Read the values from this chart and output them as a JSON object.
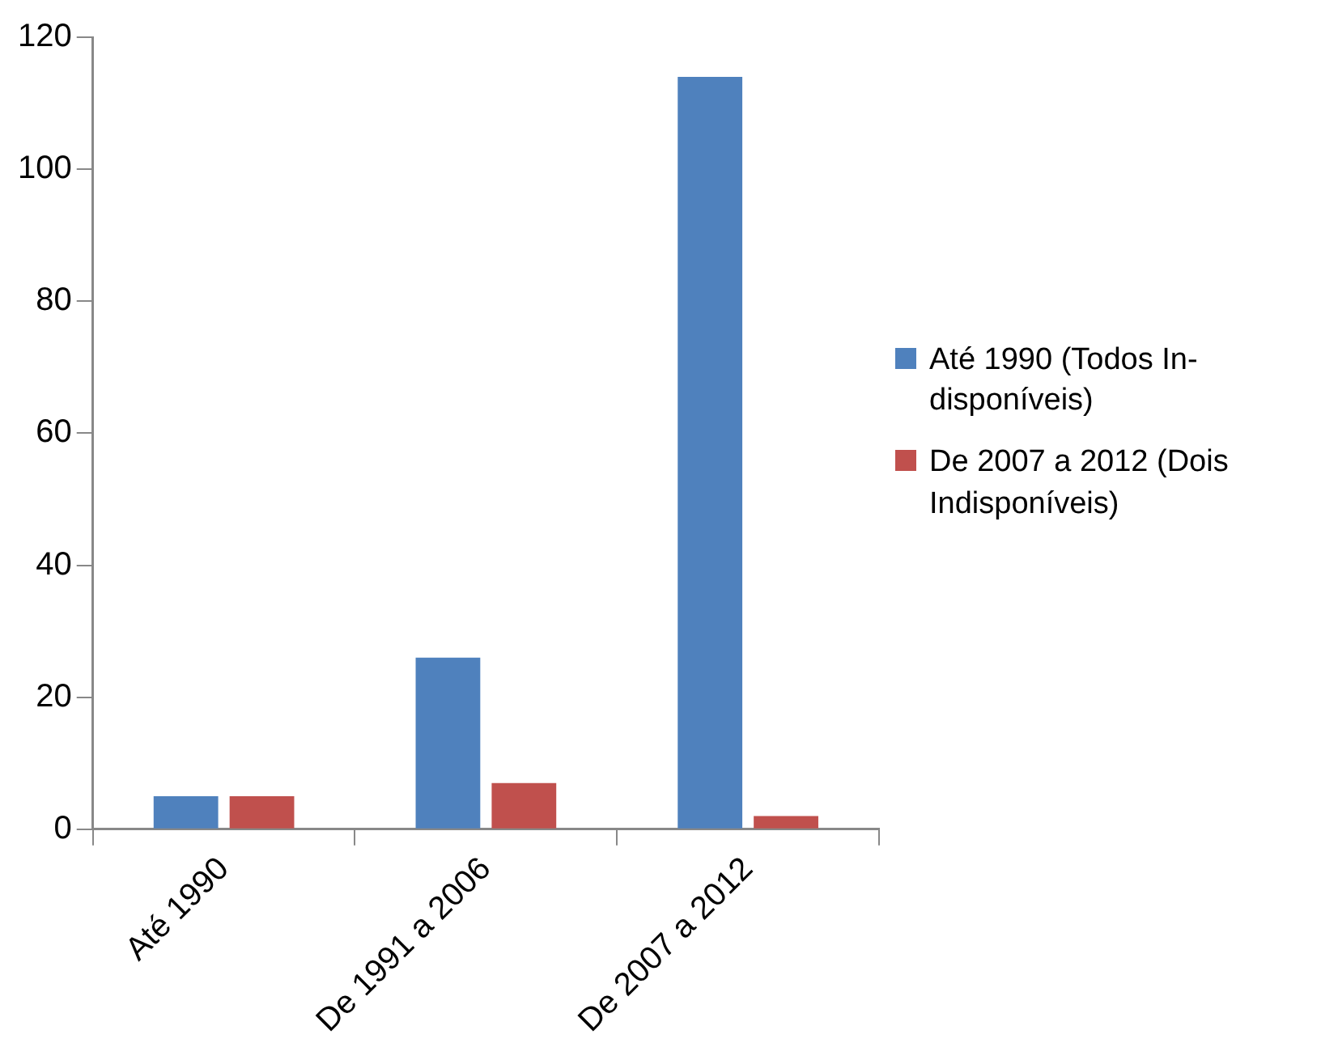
{
  "chart_data": {
    "type": "bar",
    "categories": [
      "Até 1990",
      "De 1991 a 2006",
      "De 2007 a 2012"
    ],
    "series": [
      {
        "name": "Até 1990 (Todos In-disponíveis)",
        "color": "#4f81bd",
        "values": [
          5,
          26,
          114
        ]
      },
      {
        "name": "De 2007 a 2012 (Dois Indisponíveis)",
        "color": "#c0504d",
        "values": [
          5,
          7,
          2
        ]
      }
    ],
    "ylim": [
      0,
      120
    ],
    "yticks": [
      0,
      20,
      40,
      60,
      80,
      100,
      120
    ],
    "grid": false,
    "legend": "right"
  }
}
